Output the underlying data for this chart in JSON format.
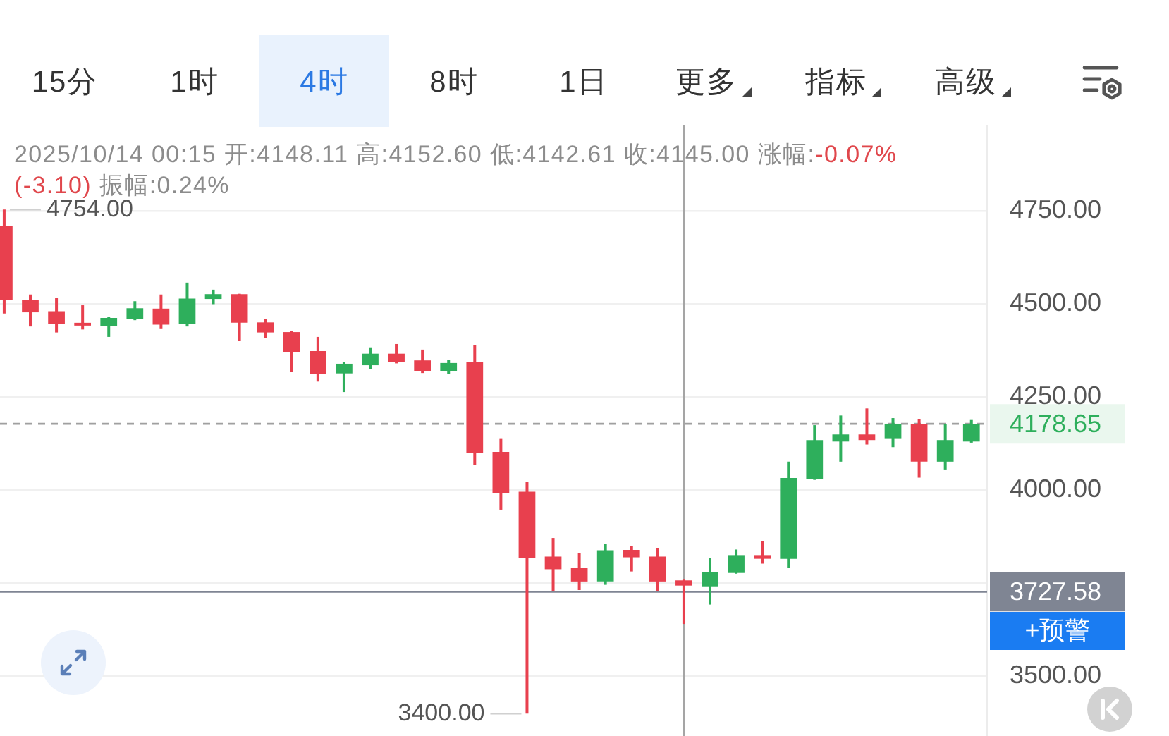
{
  "chart_data": {
    "type": "candlestick",
    "subtitle": "2025/10/14 00:15 开:4148.11 高:4152.60 低:4142.61 收:4145.00 涨幅:",
    "categories": [
      null,
      null,
      null,
      null,
      null,
      null,
      null,
      null,
      null,
      null,
      null,
      null,
      null,
      null,
      null,
      null,
      null,
      null,
      null,
      null,
      null,
      null,
      null,
      null,
      null,
      null,
      null,
      null,
      null,
      null,
      null,
      null,
      null,
      null,
      null,
      null,
      null,
      null
    ],
    "ohlc": [
      [
        4710,
        4754,
        4475,
        4512
      ],
      [
        4512,
        4526,
        4440,
        4478
      ],
      [
        4481,
        4516,
        4424,
        4447
      ],
      [
        4450,
        4497,
        4432,
        4443
      ],
      [
        4442,
        4465,
        4412,
        4463
      ],
      [
        4460,
        4508,
        4457,
        4489
      ],
      [
        4488,
        4526,
        4435,
        4445
      ],
      [
        4447,
        4558,
        4440,
        4515
      ],
      [
        4514,
        4539,
        4500,
        4527
      ],
      [
        4527,
        4528,
        4401,
        4450
      ],
      [
        4451,
        4460,
        4409,
        4424
      ],
      [
        4425,
        4427,
        4318,
        4371
      ],
      [
        4374,
        4412,
        4292,
        4312
      ],
      [
        4314,
        4345,
        4264,
        4340
      ],
      [
        4336,
        4384,
        4326,
        4367
      ],
      [
        4367,
        4393,
        4341,
        4344
      ],
      [
        4349,
        4378,
        4315,
        4321
      ],
      [
        4321,
        4351,
        4312,
        4342
      ],
      [
        4344,
        4389,
        4068,
        4100
      ],
      [
        4103,
        4138,
        3948,
        3992
      ],
      [
        3996,
        4022,
        3400,
        3818
      ],
      [
        3822,
        3872,
        3730,
        3788
      ],
      [
        3791,
        3831,
        3732,
        3755
      ],
      [
        3755,
        3856,
        3746,
        3839
      ],
      [
        3840,
        3851,
        3782,
        3820
      ],
      [
        3822,
        3844,
        3729,
        3755
      ],
      [
        3758,
        3760,
        3641,
        3744
      ],
      [
        3742,
        3818,
        3693,
        3780
      ],
      [
        3778,
        3841,
        3776,
        3826
      ],
      [
        3826,
        3864,
        3803,
        3816
      ],
      [
        3816,
        4077,
        3791,
        4033
      ],
      [
        4030,
        4175,
        4028,
        4135
      ],
      [
        4131,
        4201,
        4077,
        4150
      ],
      [
        4150,
        4220,
        4123,
        4135
      ],
      [
        4138,
        4194,
        4116,
        4179
      ],
      [
        4179,
        4191,
        4034,
        4077
      ],
      [
        4077,
        4179,
        4056,
        4135
      ],
      [
        4131,
        4189,
        4128,
        4178.65
      ]
    ],
    "colors": [
      "#e8404e",
      "#e8404e",
      "#e8404e",
      "#e8404e",
      "#2eaf5c",
      "#2eaf5c",
      "#e8404e",
      "#2eaf5c",
      "#2eaf5c",
      "#e8404e",
      "#e8404e",
      "#e8404e",
      "#e8404e",
      "#2eaf5c",
      "#2eaf5c",
      "#e8404e",
      "#e8404e",
      "#2eaf5c",
      "#e8404e",
      "#e8404e",
      "#e8404e",
      "#e8404e",
      "#e8404e",
      "#2eaf5c",
      "#e8404e",
      "#e8404e",
      "#e8404e",
      "#2eaf5c",
      "#2eaf5c",
      "#e8404e",
      "#2eaf5c",
      "#2eaf5c",
      "#2eaf5c",
      "#e8404e",
      "#2eaf5c",
      "#e8404e",
      "#2eaf5c",
      "#2eaf5c"
    ],
    "ylim": [
      3340,
      4980
    ],
    "yticks": [
      {
        "value": 3500,
        "label": "3500.00"
      },
      {
        "value": 3750,
        "label": null
      },
      {
        "value": 4000,
        "label": "4000.00"
      },
      {
        "value": 4250,
        "label": "4250.00"
      },
      {
        "value": 4500,
        "label": "4500.00"
      },
      {
        "value": 4750,
        "label": "4750.00"
      }
    ],
    "grid": "y",
    "tick_labels": "y",
    "ref_lines": [
      {
        "axis": "y",
        "value": 4178.65,
        "label": "4178.65",
        "color": "#a0a0a0",
        "line_style": "dashed"
      },
      {
        "axis": "y",
        "value": 3727.58,
        "label": "3727.58",
        "color": "#7f8593",
        "line_style": "solid"
      }
    ],
    "annotations": [
      "15分",
      "1时",
      "4时",
      "8时",
      "1日",
      "更多",
      "指标",
      "高级",
      "4754.00",
      "3400.00",
      "+预警",
      "-0.07%",
      "(-3.10)",
      "振幅:0.24%"
    ]
  }
}
